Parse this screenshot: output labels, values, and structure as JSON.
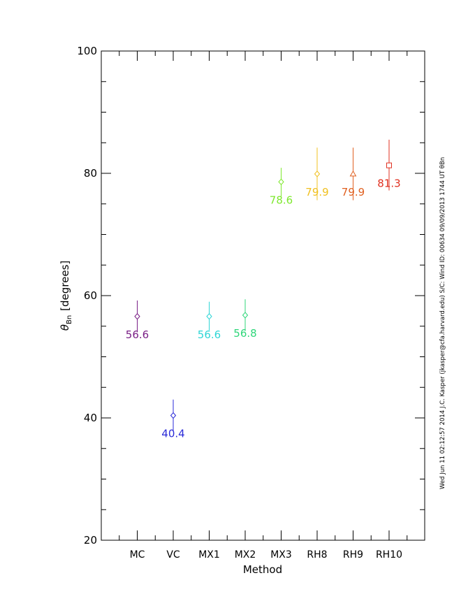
{
  "chart_data": {
    "type": "scatter",
    "title": "",
    "xlabel": "Method",
    "ylabel_symbol": "θ",
    "ylabel_subscript": "Bn",
    "ylabel_units": "[degrees]",
    "ylim": [
      20,
      100
    ],
    "yticks": [
      20,
      40,
      60,
      80,
      100
    ],
    "categories": [
      "MC",
      "VC",
      "MX1",
      "MX2",
      "MX3",
      "RH8",
      "RH9",
      "RH10"
    ],
    "values": [
      56.6,
      40.4,
      56.6,
      56.8,
      78.6,
      79.9,
      79.9,
      81.3
    ],
    "value_labels": [
      "56.6",
      "40.4",
      "56.6",
      "56.8",
      "78.6",
      "79.9",
      "79.9",
      "81.3"
    ],
    "error_low": [
      54.0,
      37.8,
      54.3,
      54.2,
      76.2,
      75.6,
      75.6,
      77.2
    ],
    "error_high": [
      59.2,
      43.0,
      59.0,
      59.4,
      80.9,
      84.2,
      84.2,
      85.5
    ],
    "markers": [
      "diamond",
      "diamond",
      "diamond",
      "diamond",
      "diamond",
      "diamond",
      "triangle",
      "square"
    ],
    "colors": [
      "#7a1f86",
      "#2a2ad8",
      "#2fd6d6",
      "#2fd67a",
      "#7ee82e",
      "#f0c020",
      "#e06020",
      "#e03020"
    ],
    "grid": false,
    "legend": "none"
  },
  "side_note": "Wed Jun 11 02:12:57 2014  J.C. Kasper (jkasper@cfa.harvard.edu)  S/C: Wind  ID: 00634 09/09/2013  1744 UT θBn"
}
